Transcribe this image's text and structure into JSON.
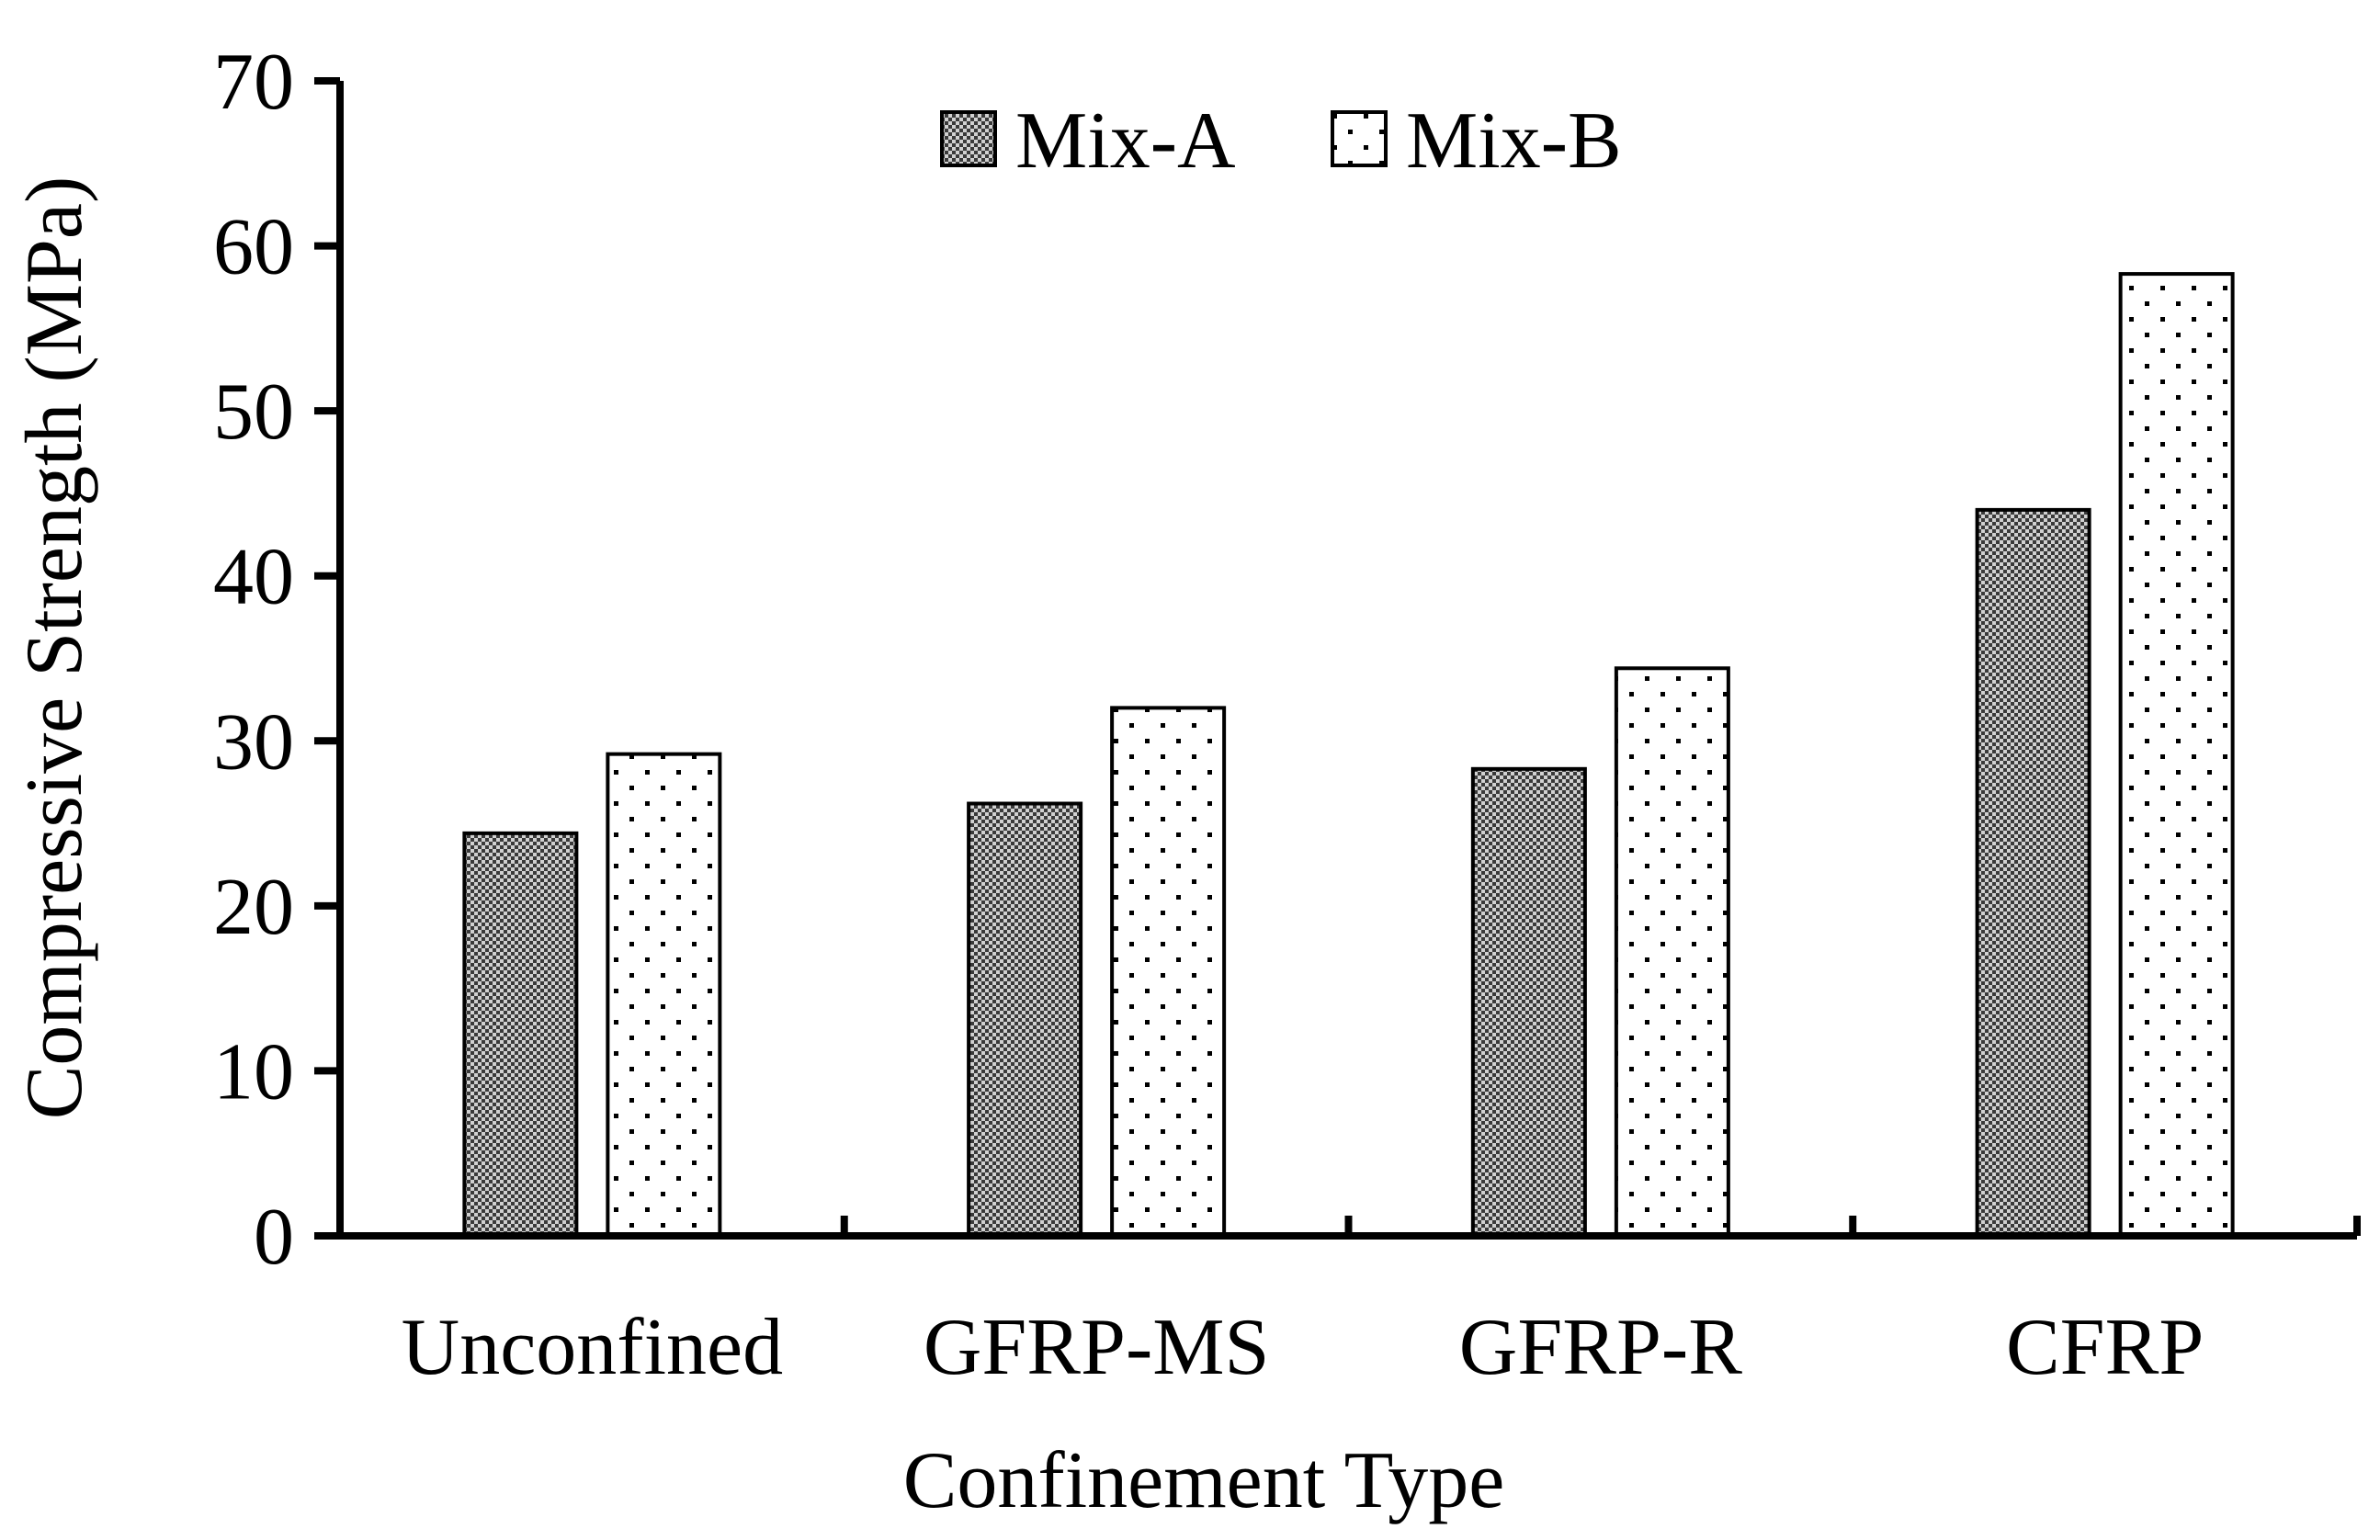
{
  "chart_data": {
    "type": "bar",
    "title": "",
    "xlabel": "Confinement Type",
    "ylabel": "Compressive Strength (MPa)",
    "categories": [
      "Unconfined",
      "GFRP-MS",
      "GFRP-R",
      "CFRP"
    ],
    "series": [
      {
        "name": "Mix-A",
        "values": [
          24.4,
          26.2,
          28.3,
          44.0
        ],
        "pattern": "checker"
      },
      {
        "name": "Mix-B",
        "values": [
          29.2,
          32.0,
          34.4,
          58.3
        ],
        "pattern": "dots"
      }
    ],
    "ylim": [
      0,
      70
    ],
    "yticks": [
      "0",
      "10",
      "20",
      "30",
      "40",
      "50",
      "60",
      "70"
    ],
    "grid": false,
    "legend_position": "top-center",
    "colors": {
      "axis": "#000000",
      "bar_border": "#000000",
      "mix_a_dark": "#3a3a3a",
      "mix_a_light": "#d0d0d0",
      "mix_b_fill": "#ffffff",
      "mix_b_dot": "#000000"
    }
  }
}
